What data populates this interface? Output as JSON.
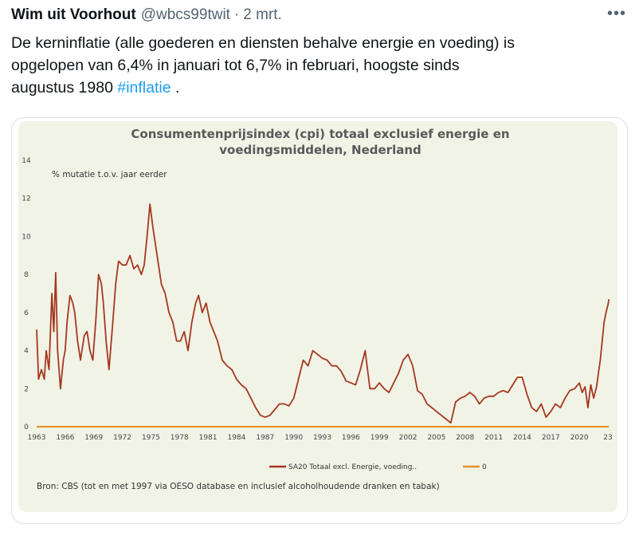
{
  "tweet": {
    "author": "Wim uit Voorhout",
    "handle": "@wbcs99twit",
    "separator": "·",
    "date": "2 mrt.",
    "more_icon": "ellipsis-icon",
    "text_line1": "De kerninflatie (alle goederen en diensten behalve energie en voeding) is",
    "text_line2": "opgelopen van 6,4% in januari tot 6,7% in februari, hoogste sinds",
    "text_line3_prefix": "augustus 1980 ",
    "hashtag": "#inflatie",
    "text_line3_suffix": " .",
    "hashtag_color": "#1d9bf0"
  },
  "chart_data": {
    "type": "line",
    "title_line1": "Consumentenprijsindex (cpi) totaal exclusief energie en",
    "title_line2": "voedingsmiddelen, Nederland",
    "ylabel": "% mutatie t.o.v. jaar eerder",
    "ylim": [
      0,
      14
    ],
    "yticks": [
      "0",
      "2",
      "4",
      "6",
      "8",
      "10",
      "12",
      "14"
    ],
    "xlim": [
      1963,
      2023
    ],
    "xticks": [
      "1963",
      "1966",
      "1969",
      "1972",
      "1975",
      "1978",
      "1981",
      "1984",
      "1987",
      "1990",
      "1993",
      "1996",
      "1999",
      "2002",
      "2005",
      "2008",
      "2011",
      "2014",
      "2017",
      "2020",
      "23"
    ],
    "grid": false,
    "legend_position": "bottom",
    "source": "Bron: CBS (tot en met 1997 via OESO database en inclusief alcoholhoudende dranken en tabak)",
    "series": [
      {
        "name": "SA20 Totaal excl. Energie, voeding..",
        "color": "#a4381f",
        "x": [
          1963.0,
          1963.2,
          1963.5,
          1963.8,
          1964.0,
          1964.3,
          1964.6,
          1964.8,
          1965.0,
          1965.2,
          1965.5,
          1965.8,
          1966.0,
          1966.2,
          1966.5,
          1966.8,
          1967.0,
          1967.3,
          1967.6,
          1968.0,
          1968.3,
          1968.6,
          1968.9,
          1969.2,
          1969.5,
          1969.8,
          1970.0,
          1970.3,
          1970.6,
          1971.0,
          1971.3,
          1971.6,
          1972.0,
          1972.4,
          1972.8,
          1973.2,
          1973.6,
          1974.0,
          1974.3,
          1974.6,
          1974.9,
          1975.2,
          1975.5,
          1975.8,
          1976.1,
          1976.5,
          1976.9,
          1977.3,
          1977.7,
          1978.1,
          1978.5,
          1978.9,
          1979.3,
          1979.7,
          1980.0,
          1980.4,
          1980.8,
          1981.2,
          1981.6,
          1982.0,
          1982.5,
          1983.0,
          1983.5,
          1984.0,
          1984.5,
          1985.0,
          1985.5,
          1986.0,
          1986.5,
          1987.0,
          1987.5,
          1988.0,
          1988.5,
          1989.0,
          1989.5,
          1990.0,
          1990.5,
          1991.0,
          1991.5,
          1992.0,
          1992.5,
          1993.0,
          1993.5,
          1994.0,
          1994.5,
          1995.0,
          1995.5,
          1996.0,
          1996.5,
          1997.0,
          1997.5,
          1998.0,
          1998.5,
          1999.0,
          1999.5,
          2000.0,
          2000.5,
          2001.0,
          2001.5,
          2002.0,
          2002.5,
          2003.0,
          2003.5,
          2004.0,
          2004.5,
          2005.0,
          2005.5,
          2006.0,
          2006.5,
          2007.0,
          2007.5,
          2008.0,
          2008.5,
          2009.0,
          2009.5,
          2010.0,
          2010.5,
          2011.0,
          2011.5,
          2012.0,
          2012.5,
          2013.0,
          2013.5,
          2014.0,
          2014.5,
          2015.0,
          2015.5,
          2016.0,
          2016.5,
          2017.0,
          2017.5,
          2018.0,
          2018.5,
          2019.0,
          2019.5,
          2020.0,
          2020.3,
          2020.6,
          2020.9,
          2021.2,
          2021.5,
          2021.8,
          2022.0,
          2022.2,
          2022.4,
          2022.6,
          2022.8,
          2023.0,
          2023.1
        ],
        "values": [
          5.1,
          2.5,
          3.0,
          2.5,
          4.0,
          3.0,
          7.0,
          5.0,
          8.1,
          4.0,
          2.0,
          3.5,
          4.0,
          5.5,
          6.9,
          6.5,
          6.0,
          4.5,
          3.5,
          4.8,
          5.0,
          4.0,
          3.5,
          5.5,
          8.0,
          7.5,
          6.5,
          4.5,
          3.0,
          5.5,
          7.5,
          8.7,
          8.5,
          8.5,
          9.0,
          8.3,
          8.5,
          8.0,
          8.5,
          10.0,
          11.7,
          10.5,
          9.5,
          8.5,
          7.5,
          7.0,
          6.0,
          5.5,
          4.5,
          4.5,
          5.0,
          4.0,
          5.5,
          6.5,
          6.9,
          6.0,
          6.5,
          5.5,
          5.0,
          4.5,
          3.5,
          3.2,
          3.0,
          2.5,
          2.2,
          2.0,
          1.5,
          1.0,
          0.6,
          0.5,
          0.6,
          0.9,
          1.2,
          1.2,
          1.1,
          1.5,
          2.5,
          3.5,
          3.2,
          4.0,
          3.8,
          3.6,
          3.5,
          3.2,
          3.2,
          2.9,
          2.4,
          2.3,
          2.2,
          3.0,
          4.0,
          2.0,
          2.0,
          2.3,
          2.0,
          1.8,
          2.3,
          2.8,
          3.5,
          3.8,
          3.2,
          1.9,
          1.7,
          1.2,
          1.0,
          0.8,
          0.6,
          0.4,
          0.2,
          1.3,
          1.5,
          1.6,
          1.8,
          1.6,
          1.2,
          1.5,
          1.6,
          1.6,
          1.8,
          1.9,
          1.8,
          2.2,
          2.6,
          2.6,
          1.7,
          1.0,
          0.8,
          1.2,
          0.5,
          0.8,
          1.2,
          1.0,
          1.5,
          1.9,
          2.0,
          2.3,
          1.8,
          2.1,
          1.0,
          2.2,
          1.5,
          2.1,
          2.8,
          3.5,
          4.5,
          5.5,
          6.0,
          6.4,
          6.7
        ]
      },
      {
        "name": "0",
        "color": "#e8922e",
        "x": [
          1963,
          2023.1
        ],
        "values": [
          0,
          0
        ]
      }
    ],
    "title_color": "#595959",
    "axis_color": "#595959"
  }
}
